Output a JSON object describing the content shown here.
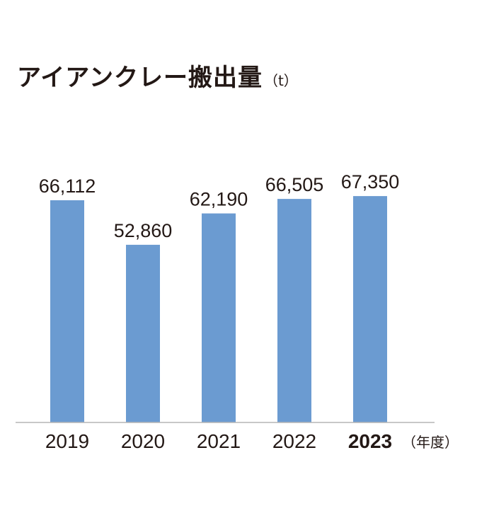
{
  "chart_data": {
    "type": "bar",
    "title": "アイアンクレー搬出量",
    "unit": "（t）",
    "categories": [
      "2019",
      "2020",
      "2021",
      "2022",
      "2023"
    ],
    "values": [
      66112,
      52860,
      62190,
      66505,
      67350
    ],
    "value_labels": [
      "66,112",
      "52,860",
      "62,190",
      "66,505",
      "67,350"
    ],
    "highlight_category": "2023",
    "xunit": "（年度）",
    "ylim": [
      0,
      80000
    ],
    "grid": false,
    "legend": "none",
    "bar_color": "#6b9bd1",
    "axis_color": "#b5b5b5"
  }
}
